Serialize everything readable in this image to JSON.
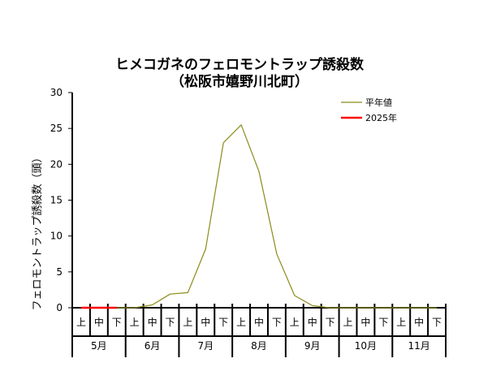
{
  "chart_data": {
    "type": "line",
    "title_line1": "ヒメコガネのフェロモントラップ誘殺数",
    "title_line2": "（松阪市嬉野川北町）",
    "ylabel": "フェロモントラップ誘殺数（頭）",
    "xlabel": "",
    "ylim": [
      0,
      30
    ],
    "yticks": [
      0,
      5,
      10,
      15,
      20,
      25,
      30
    ],
    "dekads": [
      "上",
      "中",
      "下",
      "上",
      "中",
      "下",
      "上",
      "中",
      "下",
      "上",
      "中",
      "下",
      "上",
      "中",
      "下",
      "上",
      "中",
      "下",
      "上",
      "中",
      "下"
    ],
    "months": [
      "5月",
      "6月",
      "7月",
      "8月",
      "9月",
      "10月",
      "11月"
    ],
    "legend_position": "top-right",
    "series": [
      {
        "name": "平年値",
        "color": "#8b8b1a",
        "values": [
          0,
          0,
          0,
          0,
          0.4,
          1.9,
          2.1,
          8.2,
          23.0,
          25.5,
          19.0,
          7.5,
          1.7,
          0.3,
          0,
          0,
          0,
          0,
          0,
          0,
          0
        ]
      },
      {
        "name": "2025年",
        "color": "#ff0000",
        "values": [
          0,
          0,
          0
        ]
      }
    ]
  }
}
